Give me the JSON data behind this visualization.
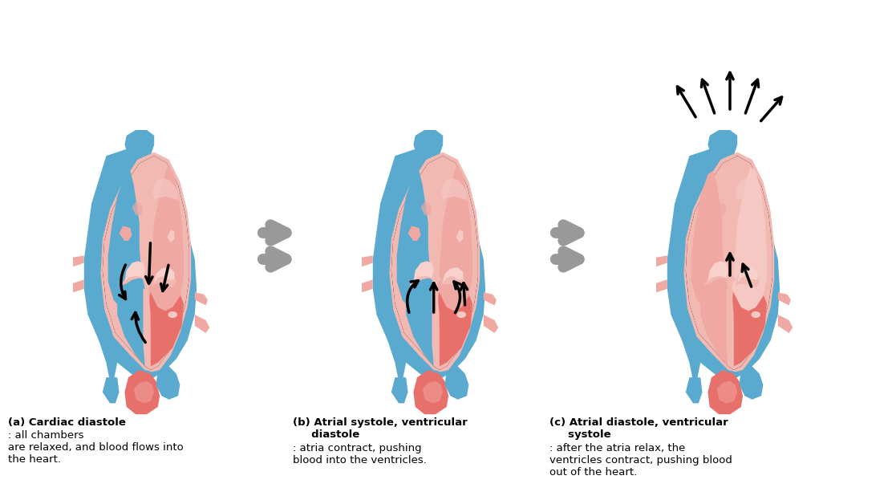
{
  "background_color": "#ffffff",
  "blue": "#5aaad0",
  "blue2": "#4a9abf",
  "red": "#e8706a",
  "red_light": "#f0a8a2",
  "red_pale": "#f5c8c4",
  "pink": "#f2b8b2",
  "pink2": "#f8d0cc",
  "gray_arrow": "#aaaaaa",
  "black": "#111111",
  "figure_width": 11.17,
  "figure_height": 6.13,
  "label_a_bold": "(a) Cardiac diastole",
  "label_a_normal": ": all chambers\nare relaxed, and blood flows into\nthe heart.",
  "label_b_bold": "(b) Atrial systole, ventricular\n     diastole",
  "label_b_normal": ": atria contract, pushing\nblood into the ventricles.",
  "label_c_bold": "(c) Atrial diastole, ventricular\n     systole",
  "label_c_normal": ": after the atria relax, the\nventricles contract, pushing blood\nout of the heart."
}
